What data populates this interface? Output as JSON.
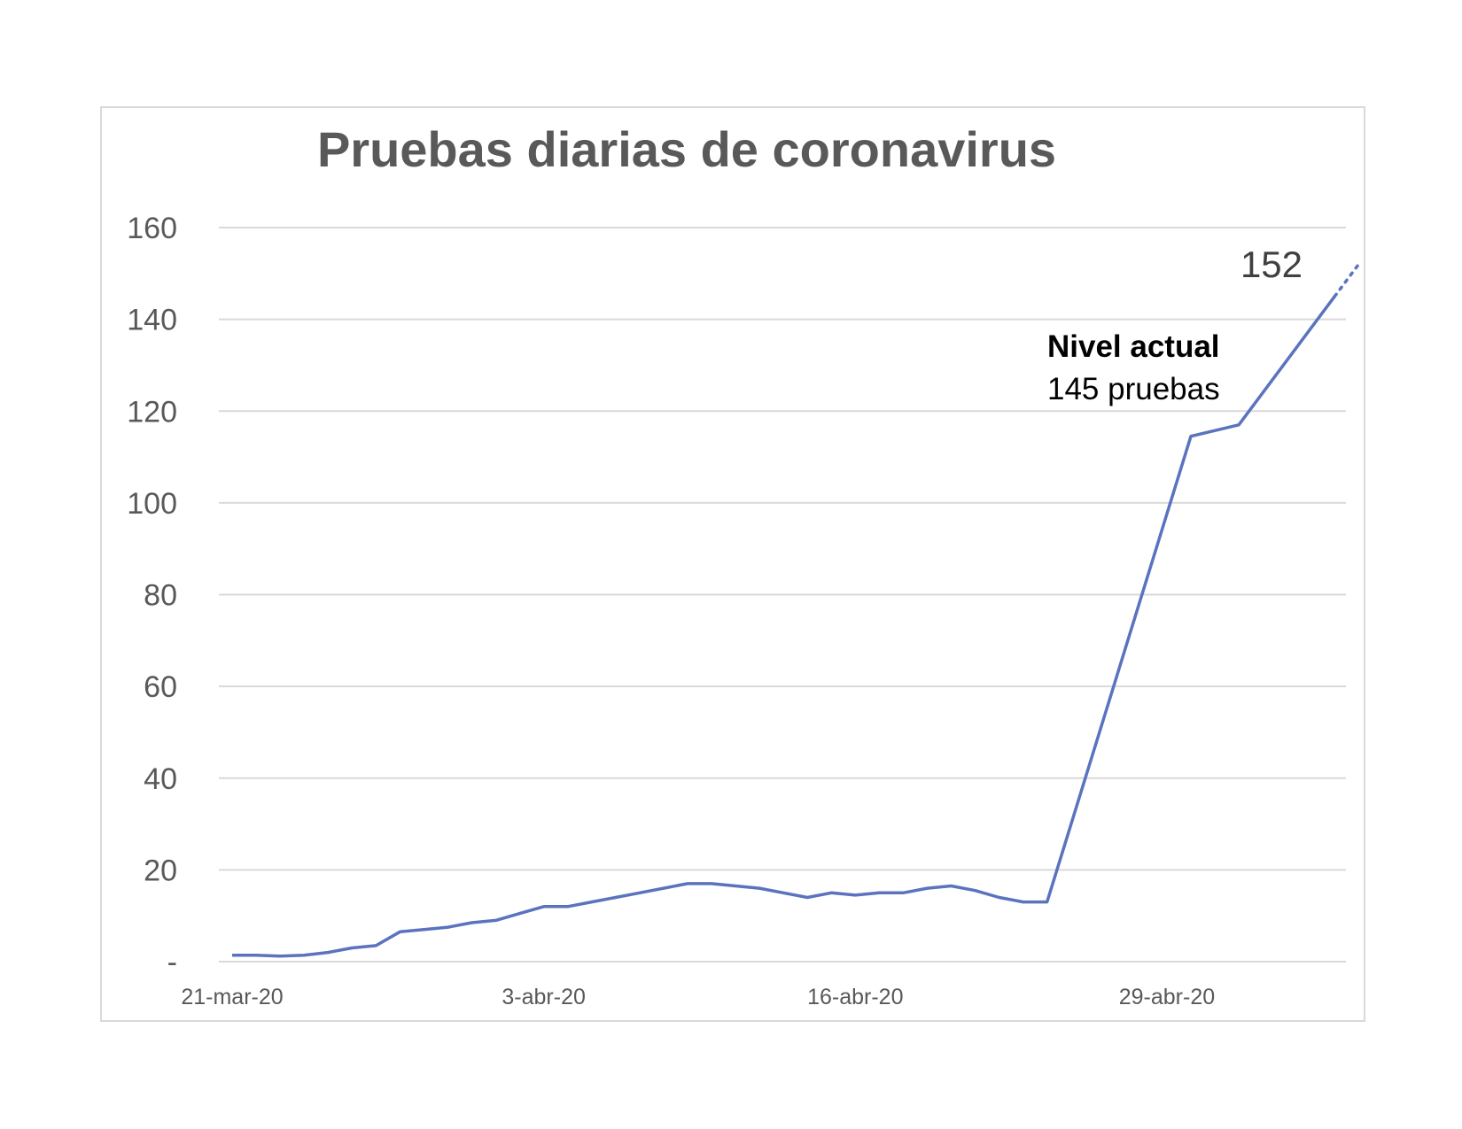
{
  "chart_data": {
    "type": "line",
    "title": "Pruebas diarias de coronavirus",
    "xlabel": "",
    "ylabel": "",
    "ylim": [
      0,
      160
    ],
    "y_ticks": [
      0,
      20,
      40,
      60,
      80,
      100,
      120,
      140,
      160
    ],
    "y_tick_labels": [
      "-",
      "20",
      "40",
      "60",
      "80",
      "100",
      "120",
      "140",
      "160"
    ],
    "x_tick_labels": [
      "21-mar-20",
      "3-abr-20",
      "16-abr-20",
      "29-abr-20"
    ],
    "x_tick_dates": [
      "2020-03-21",
      "2020-04-03",
      "2020-04-16",
      "2020-04-29"
    ],
    "grid": true,
    "line_color": "#5b73bf",
    "series": [
      {
        "x": [
          "2020-03-21",
          "2020-03-22",
          "2020-03-23",
          "2020-03-24",
          "2020-03-25",
          "2020-03-26",
          "2020-03-27",
          "2020-03-28",
          "2020-03-29",
          "2020-03-30",
          "2020-03-31",
          "2020-04-01",
          "2020-04-02",
          "2020-04-03",
          "2020-04-04",
          "2020-04-05",
          "2020-04-06",
          "2020-04-07",
          "2020-04-08",
          "2020-04-09",
          "2020-04-10",
          "2020-04-11",
          "2020-04-12",
          "2020-04-13",
          "2020-04-14",
          "2020-04-15",
          "2020-04-16",
          "2020-04-17",
          "2020-04-18",
          "2020-04-19",
          "2020-04-20",
          "2020-04-21",
          "2020-04-22",
          "2020-04-23",
          "2020-04-24",
          "2020-04-30",
          "2020-05-02",
          "2020-05-06"
        ],
        "values": [
          1.4,
          1.4,
          1.2,
          1.4,
          2,
          3,
          3.5,
          6.5,
          7,
          7.5,
          8.5,
          9,
          10.5,
          12,
          12,
          13,
          14,
          15,
          16,
          17,
          17,
          16.5,
          16,
          15,
          14,
          15,
          14.5,
          15,
          15,
          16,
          16.5,
          15.5,
          14,
          13,
          13,
          114.5,
          117,
          145
        ]
      }
    ],
    "projection": {
      "from_date": "2020-05-06",
      "to_date": "2020-05-07",
      "from_value": 145,
      "to_value": 152,
      "label": "152"
    },
    "annotation": {
      "line1": "Nivel actual",
      "line2": "145 pruebas"
    }
  }
}
